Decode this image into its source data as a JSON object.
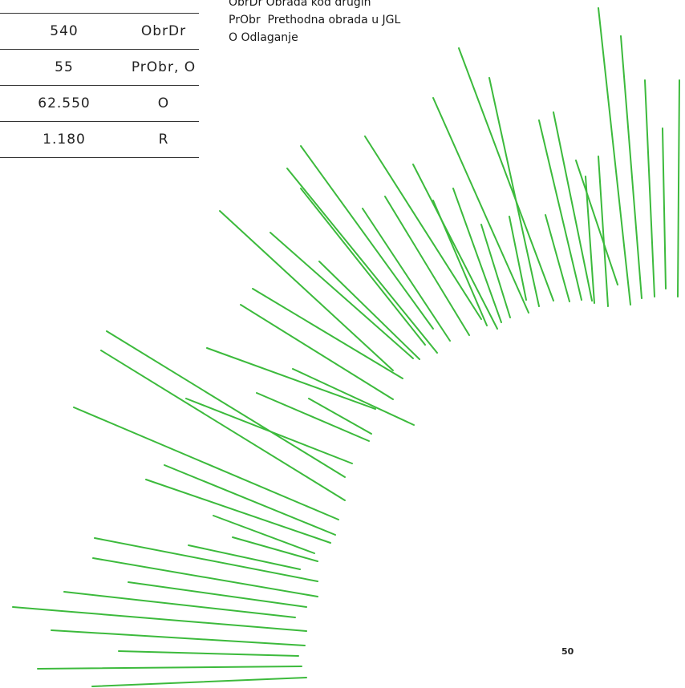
{
  "table": {
    "rows": [
      {
        "value": "540",
        "code": "ObrDr"
      },
      {
        "value": "55",
        "code": "PrObr, O"
      },
      {
        "value": "62.550",
        "code": "O"
      },
      {
        "value": "1.180",
        "code": "R"
      }
    ]
  },
  "legend": [
    "ObrDr Obrada kod drugih",
    "PrObr  Prethodna obrada u JGL",
    "O Odlaganje"
  ],
  "page_number": "50",
  "colors": {
    "line": "#3cba3c",
    "rule": "#333333"
  }
}
